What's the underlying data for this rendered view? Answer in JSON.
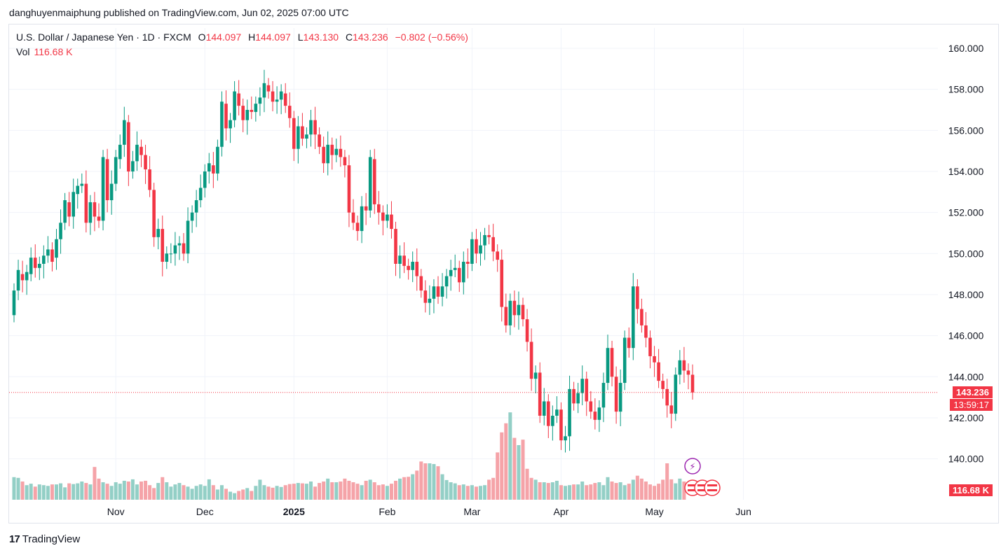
{
  "caption": "danghuyenmaiphung published on TradingView.com, Jun 02, 2025 07:00 UTC",
  "legend": {
    "symbol": "U.S. Dollar / Japanese Yen · 1D · FXCM",
    "o_label": "O",
    "o_value": "144.097",
    "h_label": "H",
    "h_value": "144.097",
    "l_label": "L",
    "l_value": "143.130",
    "c_label": "C",
    "c_value": "143.236",
    "change": "−0.802 (−0.56%)",
    "vol_label": "Vol",
    "vol_value": "116.68 K"
  },
  "badges": {
    "price": "143.236",
    "countdown": "13:59:17",
    "volume": "116.68 K"
  },
  "footer": {
    "brand": "TradingView",
    "mark": "17"
  },
  "colors": {
    "up": "#089981",
    "down": "#f23645",
    "vol_up": "#93cfc6",
    "vol_down": "#f5a3a8",
    "grid": "#f0f3fa"
  },
  "chart_data": {
    "type": "candlestick",
    "title": "U.S. Dollar / Japanese Yen · 1D · FXCM",
    "ylim": [
      138.0,
      161.0
    ],
    "y_ticks": [
      "160.000",
      "158.000",
      "156.000",
      "154.000",
      "152.000",
      "150.000",
      "148.000",
      "146.000",
      "144.000",
      "142.000",
      "140.000"
    ],
    "x_ticks": [
      {
        "label": "Nov",
        "index": 24
      },
      {
        "label": "Dec",
        "index": 45
      },
      {
        "label": "2025",
        "index": 66,
        "bold": true
      },
      {
        "label": "Feb",
        "index": 88
      },
      {
        "label": "Mar",
        "index": 108
      },
      {
        "label": "Apr",
        "index": 129
      },
      {
        "label": "May",
        "index": 151
      },
      {
        "label": "Jun",
        "index": 172
      }
    ],
    "last_price": 143.236,
    "closes": [
      148.2,
      149.2,
      148.7,
      149.1,
      149.8,
      149.3,
      149.5,
      149.9,
      150.2,
      149.6,
      150.7,
      151.5,
      152.6,
      151.8,
      153.0,
      153.3,
      153.4,
      151.5,
      152.5,
      151.8,
      151.6,
      154.7,
      152.6,
      153.4,
      154.7,
      155.3,
      156.5,
      154.0,
      154.5,
      155.3,
      154.8,
      154.1,
      153.1,
      150.8,
      151.2,
      149.6,
      150.0,
      150.0,
      150.4,
      150.5,
      150.0,
      151.6,
      152.0,
      152.6,
      153.2,
      154.0,
      154.4,
      153.9,
      155.2,
      157.4,
      156.1,
      156.5,
      157.9,
      157.2,
      156.5,
      157.0,
      156.9,
      157.3,
      157.6,
      158.3,
      157.9,
      157.4,
      157.5,
      157.9,
      157.2,
      156.6,
      155.1,
      156.2,
      155.6,
      155.8,
      156.5,
      155.8,
      155.2,
      154.4,
      155.3,
      154.8,
      155.1,
      154.7,
      154.3,
      152.0,
      151.5,
      151.1,
      152.3,
      152.1,
      154.7,
      152.4,
      152.0,
      151.6,
      151.9,
      151.2,
      149.5,
      149.9,
      149.4,
      149.2,
      149.6,
      148.9,
      148.2,
      147.6,
      147.8,
      148.4,
      147.9,
      148.4,
      148.9,
      149.2,
      149.3,
      148.6,
      149.6,
      149.5,
      150.7,
      150.0,
      150.4,
      150.9,
      150.8,
      150.1,
      149.7,
      147.4,
      146.5,
      147.7,
      147.0,
      147.5,
      146.8,
      145.7,
      143.9,
      144.2,
      142.1,
      142.8,
      141.6,
      142.1,
      142.4,
      140.9,
      141.1,
      143.4,
      142.7,
      143.2,
      143.9,
      142.8,
      142.3,
      141.9,
      142.5,
      143.7,
      145.4,
      144.0,
      142.3,
      143.7,
      145.9,
      145.4,
      148.4,
      147.3,
      146.5,
      145.9,
      145.0,
      144.7,
      143.8,
      143.4,
      142.6,
      142.2,
      144.1,
      144.8,
      144.3,
      144.1,
      143.236
    ],
    "opens": [
      147.0,
      148.2,
      149.0,
      148.7,
      149.0,
      149.8,
      149.3,
      149.5,
      149.9,
      150.2,
      149.8,
      150.7,
      151.5,
      152.5,
      151.8,
      152.9,
      153.3,
      153.4,
      151.5,
      152.5,
      151.8,
      151.6,
      154.6,
      152.6,
      153.4,
      154.6,
      155.3,
      156.4,
      154.0,
      154.5,
      155.2,
      154.8,
      154.1,
      153.1,
      150.8,
      151.2,
      149.6,
      150.0,
      150.0,
      150.4,
      150.5,
      150.0,
      151.6,
      152.0,
      152.6,
      153.2,
      154.0,
      154.3,
      153.9,
      155.2,
      157.3,
      156.1,
      156.5,
      157.8,
      157.2,
      156.5,
      157.0,
      156.9,
      157.3,
      157.6,
      158.2,
      157.9,
      157.4,
      157.5,
      157.8,
      157.2,
      156.6,
      155.1,
      156.2,
      155.6,
      155.8,
      156.5,
      155.8,
      155.2,
      154.4,
      155.3,
      154.8,
      155.1,
      154.7,
      154.3,
      152.0,
      151.5,
      151.1,
      152.3,
      152.1,
      154.6,
      152.4,
      152.0,
      151.6,
      151.9,
      151.2,
      149.5,
      149.9,
      149.4,
      149.2,
      149.6,
      148.9,
      148.2,
      147.6,
      147.8,
      148.4,
      147.9,
      148.4,
      148.9,
      149.2,
      149.3,
      148.6,
      149.6,
      149.5,
      150.7,
      150.0,
      150.4,
      150.9,
      150.8,
      150.1,
      149.7,
      147.4,
      146.5,
      147.7,
      147.0,
      147.5,
      146.8,
      145.7,
      143.9,
      144.2,
      142.1,
      142.8,
      141.6,
      142.1,
      142.4,
      140.9,
      141.1,
      143.4,
      142.7,
      143.2,
      143.9,
      142.8,
      142.3,
      141.9,
      142.5,
      143.7,
      145.4,
      144.0,
      142.3,
      143.7,
      145.9,
      145.4,
      148.4,
      147.3,
      146.5,
      145.9,
      145.0,
      144.7,
      143.8,
      143.4,
      142.6,
      142.2,
      144.1,
      144.8,
      144.3,
      144.097
    ],
    "volume_rel": [
      0.62,
      0.6,
      0.5,
      0.4,
      0.44,
      0.36,
      0.42,
      0.4,
      0.38,
      0.42,
      0.42,
      0.45,
      0.34,
      0.45,
      0.43,
      0.45,
      0.5,
      0.46,
      0.42,
      0.9,
      0.58,
      0.48,
      0.44,
      0.38,
      0.48,
      0.44,
      0.52,
      0.5,
      0.56,
      0.42,
      0.5,
      0.52,
      0.4,
      0.32,
      0.46,
      0.62,
      0.48,
      0.36,
      0.42,
      0.46,
      0.4,
      0.36,
      0.3,
      0.38,
      0.42,
      0.38,
      0.56,
      0.4,
      0.28,
      0.4,
      0.3,
      0.22,
      0.18,
      0.24,
      0.28,
      0.32,
      0.24,
      0.38,
      0.55,
      0.4,
      0.36,
      0.33,
      0.38,
      0.35,
      0.4,
      0.43,
      0.44,
      0.46,
      0.45,
      0.44,
      0.5,
      0.36,
      0.46,
      0.5,
      0.58,
      0.48,
      0.48,
      0.5,
      0.58,
      0.52,
      0.48,
      0.44,
      0.4,
      0.52,
      0.55,
      0.48,
      0.4,
      0.42,
      0.38,
      0.44,
      0.52,
      0.58,
      0.62,
      0.63,
      0.7,
      0.8,
      1.05,
      1.0,
      1.0,
      0.98,
      0.92,
      0.7,
      0.54,
      0.48,
      0.45,
      0.4,
      0.42,
      0.38,
      0.4,
      0.36,
      0.38,
      0.4,
      0.55,
      0.6,
      1.3,
      1.85,
      2.1,
      2.4,
      1.7,
      1.5,
      1.65,
      0.85,
      0.6,
      0.55,
      0.48,
      0.48,
      0.46,
      0.48,
      0.52,
      0.4,
      0.38,
      0.4,
      0.42,
      0.42,
      0.5,
      0.4,
      0.42,
      0.46,
      0.48,
      0.4,
      0.62,
      0.5,
      0.46,
      0.48,
      0.4,
      0.44,
      0.55,
      0.66,
      0.58,
      0.5,
      0.42,
      0.38,
      0.44,
      0.55,
      1.0,
      0.56,
      0.45,
      0.58,
      0.5
    ]
  }
}
